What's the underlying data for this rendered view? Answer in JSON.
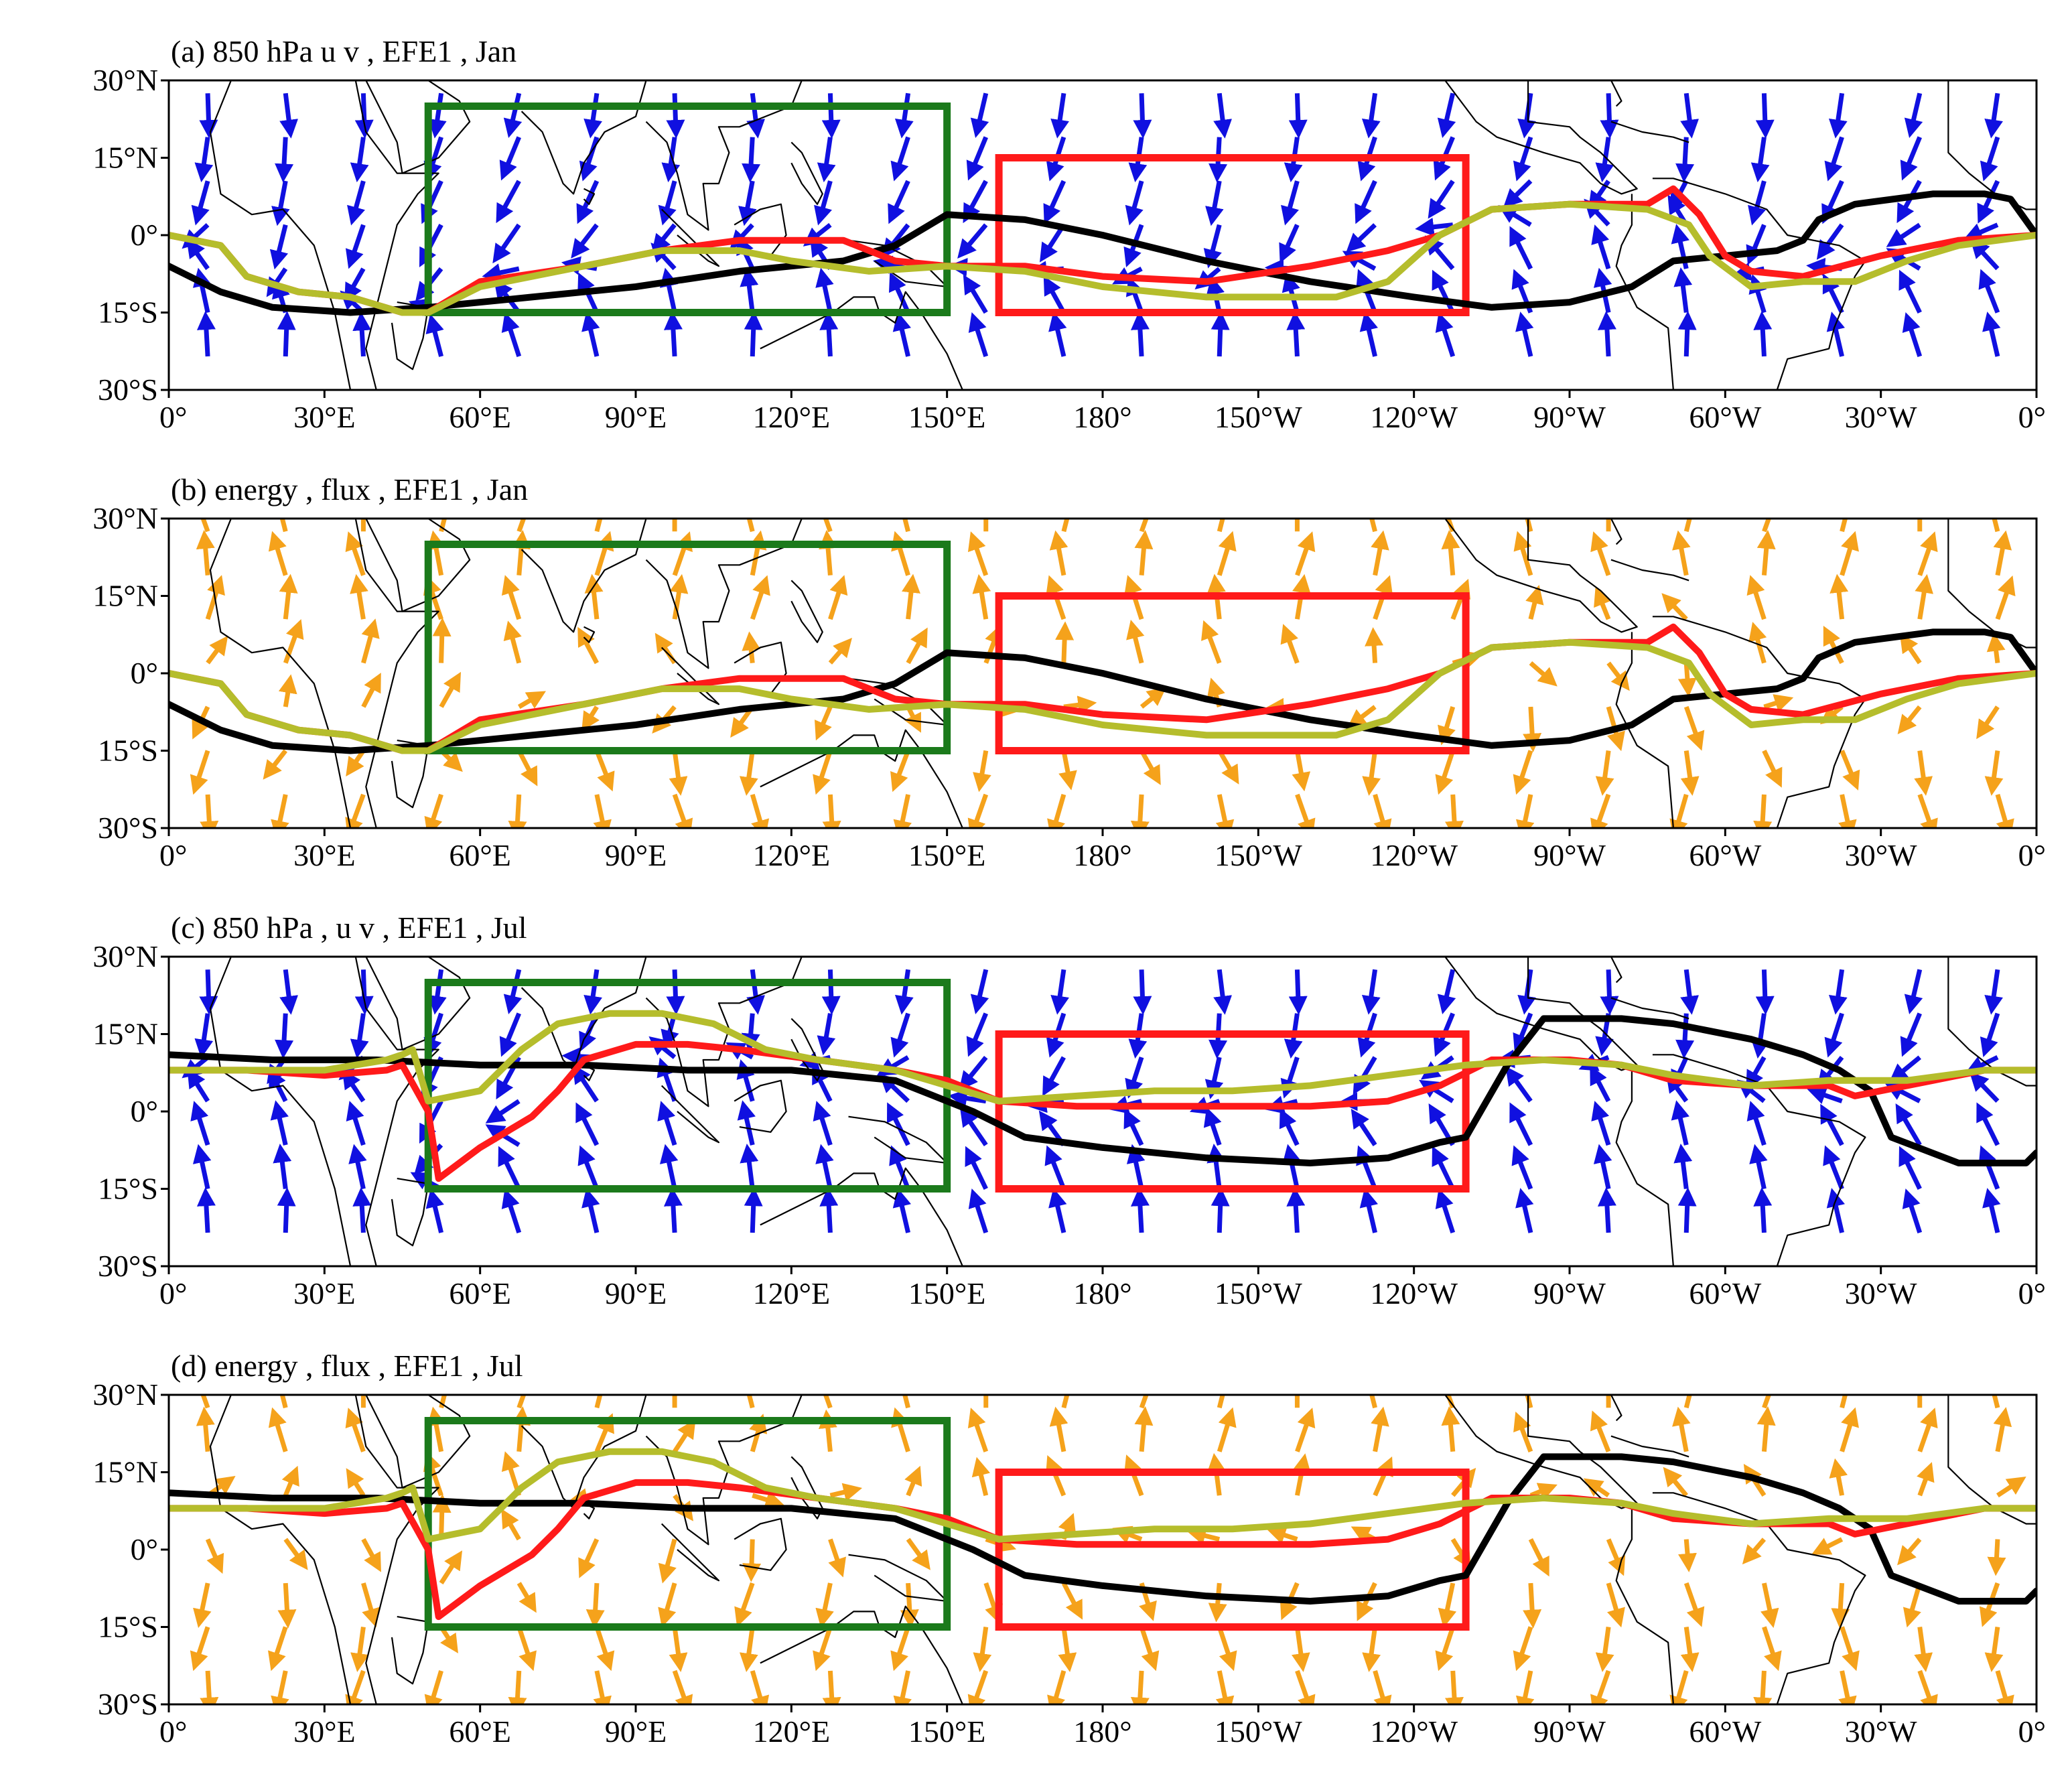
{
  "figure": {
    "panels": [
      {
        "id": "a",
        "title": "(a) 850 hPa u v , EFE1 , Jan",
        "field": "850 hPa u v",
        "month": "Jan",
        "vector_color": "#1010e0"
      },
      {
        "id": "b",
        "title": "(b) energy , flux , EFE1 , Jan",
        "field": "energy flux",
        "month": "Jan",
        "vector_color": "#f5a21b"
      },
      {
        "id": "c",
        "title": "(c) 850 hPa , u v , EFE1 , Jul",
        "field": "850 hPa u v",
        "month": "Jul",
        "vector_color": "#1010e0"
      },
      {
        "id": "d",
        "title": "(d) energy , flux , EFE1 , Jul",
        "field": "energy flux",
        "month": "Jul",
        "vector_color": "#f5a21b"
      }
    ],
    "x_ticks": [
      "0°",
      "30°E",
      "60°E",
      "90°E",
      "120°E",
      "150°E",
      "180°",
      "150°W",
      "120°W",
      "90°W",
      "60°W",
      "30°W",
      "0°"
    ],
    "x_tick_lon": [
      0,
      30,
      60,
      90,
      120,
      150,
      180,
      210,
      240,
      270,
      300,
      330,
      360
    ],
    "y_ticks": [
      "30°N",
      "15°N",
      "0°",
      "15°S",
      "30°S"
    ],
    "y_tick_lat": [
      30,
      15,
      0,
      -15,
      -30
    ],
    "xlim": [
      0,
      360
    ],
    "ylim": [
      -30,
      30
    ],
    "colors": {
      "black_line": "#000000",
      "red_line": "#ff1a1a",
      "olive_line": "#b5bd2c",
      "green_box": "#1b7a1b",
      "red_box": "#ff1a1a",
      "coastline": "#000000"
    },
    "regions": [
      {
        "color_key": "green_box",
        "lon": [
          50,
          150
        ],
        "lat": [
          -15,
          25
        ]
      },
      {
        "color_key": "red_box",
        "lon": [
          160,
          250
        ],
        "lat": [
          -15,
          15
        ]
      }
    ],
    "jan_lines": {
      "black": [
        [
          0,
          -6
        ],
        [
          10,
          -11
        ],
        [
          20,
          -14
        ],
        [
          35,
          -15
        ],
        [
          50,
          -14
        ],
        [
          70,
          -12
        ],
        [
          90,
          -10
        ],
        [
          110,
          -7
        ],
        [
          130,
          -5
        ],
        [
          140,
          -2
        ],
        [
          150,
          4
        ],
        [
          165,
          3
        ],
        [
          180,
          0
        ],
        [
          200,
          -5
        ],
        [
          220,
          -9
        ],
        [
          240,
          -12
        ],
        [
          255,
          -14
        ],
        [
          270,
          -13
        ],
        [
          282,
          -10
        ],
        [
          290,
          -5
        ],
        [
          300,
          -4
        ],
        [
          310,
          -3
        ],
        [
          315,
          -1
        ],
        [
          318,
          3
        ],
        [
          325,
          6
        ],
        [
          340,
          8
        ],
        [
          350,
          8
        ],
        [
          355,
          7
        ],
        [
          360,
          0
        ]
      ],
      "red": [
        [
          0,
          0
        ],
        [
          10,
          -2
        ],
        [
          15,
          -8
        ],
        [
          25,
          -11
        ],
        [
          35,
          -12
        ],
        [
          45,
          -15
        ],
        [
          50,
          -15
        ],
        [
          60,
          -9
        ],
        [
          80,
          -6
        ],
        [
          95,
          -3
        ],
        [
          110,
          -1
        ],
        [
          120,
          -1
        ],
        [
          130,
          -1
        ],
        [
          140,
          -5
        ],
        [
          150,
          -6
        ],
        [
          165,
          -6
        ],
        [
          180,
          -8
        ],
        [
          200,
          -9
        ],
        [
          220,
          -6
        ],
        [
          235,
          -3
        ],
        [
          245,
          0
        ],
        [
          255,
          5
        ],
        [
          270,
          6
        ],
        [
          285,
          6
        ],
        [
          290,
          9
        ],
        [
          295,
          4
        ],
        [
          300,
          -4
        ],
        [
          305,
          -7
        ],
        [
          315,
          -8
        ],
        [
          330,
          -4
        ],
        [
          345,
          -1
        ],
        [
          360,
          0
        ]
      ],
      "olive": [
        [
          0,
          0
        ],
        [
          10,
          -2
        ],
        [
          15,
          -8
        ],
        [
          25,
          -11
        ],
        [
          35,
          -12
        ],
        [
          45,
          -15
        ],
        [
          50,
          -15
        ],
        [
          60,
          -10
        ],
        [
          80,
          -6
        ],
        [
          95,
          -3
        ],
        [
          110,
          -3
        ],
        [
          120,
          -5
        ],
        [
          135,
          -7
        ],
        [
          150,
          -6
        ],
        [
          165,
          -7
        ],
        [
          180,
          -10
        ],
        [
          200,
          -12
        ],
        [
          215,
          -12
        ],
        [
          225,
          -12
        ],
        [
          235,
          -9
        ],
        [
          245,
          0
        ],
        [
          255,
          5
        ],
        [
          270,
          6
        ],
        [
          285,
          5
        ],
        [
          293,
          2
        ],
        [
          297,
          -4
        ],
        [
          305,
          -10
        ],
        [
          315,
          -9
        ],
        [
          325,
          -9
        ],
        [
          335,
          -5
        ],
        [
          345,
          -2
        ],
        [
          360,
          0
        ]
      ]
    },
    "jul_lines": {
      "black": [
        [
          0,
          11
        ],
        [
          20,
          10
        ],
        [
          40,
          10
        ],
        [
          60,
          9
        ],
        [
          80,
          9
        ],
        [
          100,
          8
        ],
        [
          120,
          8
        ],
        [
          140,
          6
        ],
        [
          155,
          0
        ],
        [
          165,
          -5
        ],
        [
          180,
          -7
        ],
        [
          200,
          -9
        ],
        [
          220,
          -10
        ],
        [
          235,
          -9
        ],
        [
          245,
          -6
        ],
        [
          250,
          -5
        ],
        [
          258,
          9
        ],
        [
          265,
          18
        ],
        [
          280,
          18
        ],
        [
          290,
          17
        ],
        [
          305,
          14
        ],
        [
          315,
          11
        ],
        [
          322,
          8
        ],
        [
          328,
          4
        ],
        [
          332,
          -5
        ],
        [
          345,
          -10
        ],
        [
          358,
          -10
        ],
        [
          360,
          -8
        ]
      ],
      "red": [
        [
          0,
          8
        ],
        [
          15,
          8
        ],
        [
          30,
          7
        ],
        [
          42,
          8
        ],
        [
          45,
          9
        ],
        [
          50,
          0
        ],
        [
          52,
          -13
        ],
        [
          60,
          -7
        ],
        [
          70,
          -1
        ],
        [
          75,
          4
        ],
        [
          80,
          10
        ],
        [
          90,
          13
        ],
        [
          100,
          13
        ],
        [
          110,
          12
        ],
        [
          125,
          10
        ],
        [
          140,
          8
        ],
        [
          150,
          6
        ],
        [
          160,
          2
        ],
        [
          175,
          1
        ],
        [
          190,
          1
        ],
        [
          205,
          1
        ],
        [
          220,
          1
        ],
        [
          235,
          2
        ],
        [
          245,
          5
        ],
        [
          255,
          10
        ],
        [
          270,
          10
        ],
        [
          280,
          9
        ],
        [
          290,
          6
        ],
        [
          305,
          5
        ],
        [
          320,
          5
        ],
        [
          325,
          3
        ],
        [
          330,
          4
        ],
        [
          340,
          6
        ],
        [
          350,
          8
        ],
        [
          360,
          8
        ]
      ],
      "olive": [
        [
          0,
          8
        ],
        [
          15,
          8
        ],
        [
          30,
          8
        ],
        [
          42,
          10
        ],
        [
          45,
          11
        ],
        [
          47,
          12
        ],
        [
          50,
          2
        ],
        [
          55,
          3
        ],
        [
          60,
          4
        ],
        [
          68,
          12
        ],
        [
          75,
          17
        ],
        [
          85,
          19
        ],
        [
          95,
          19
        ],
        [
          105,
          17
        ],
        [
          115,
          12
        ],
        [
          125,
          10
        ],
        [
          140,
          8
        ],
        [
          150,
          5
        ],
        [
          160,
          2
        ],
        [
          175,
          3
        ],
        [
          190,
          4
        ],
        [
          205,
          4
        ],
        [
          220,
          5
        ],
        [
          235,
          7
        ],
        [
          250,
          9
        ],
        [
          265,
          10
        ],
        [
          280,
          9
        ],
        [
          290,
          7
        ],
        [
          305,
          5
        ],
        [
          320,
          6
        ],
        [
          335,
          6
        ],
        [
          350,
          8
        ],
        [
          360,
          8
        ]
      ]
    }
  }
}
